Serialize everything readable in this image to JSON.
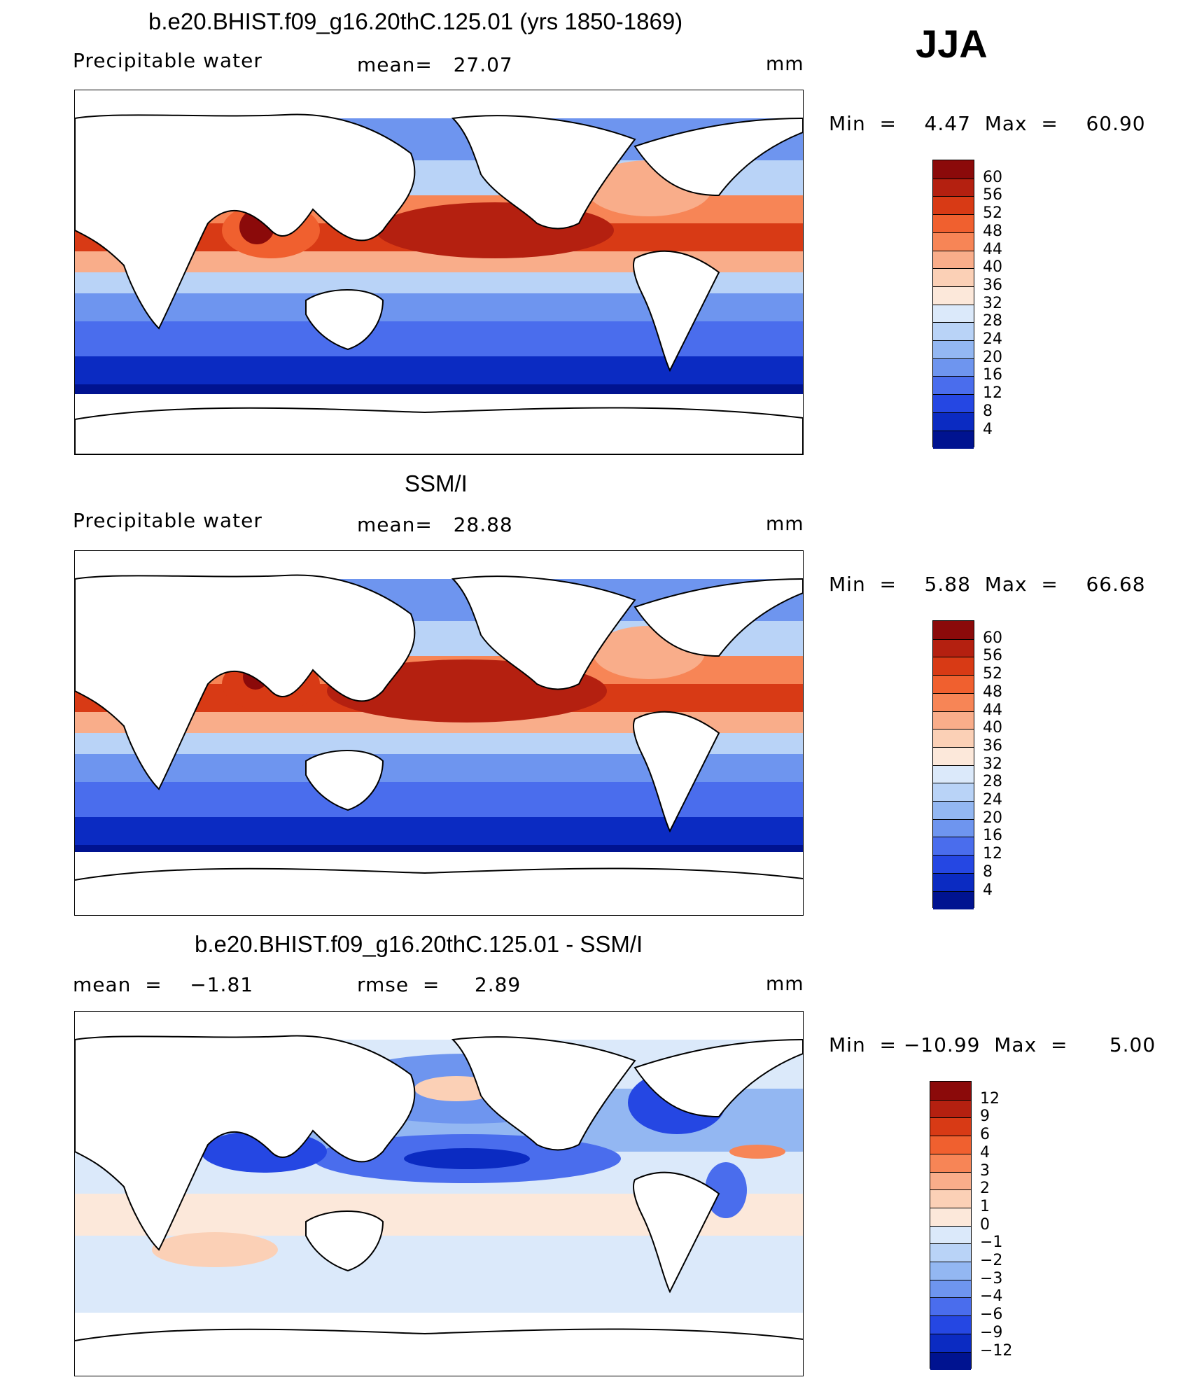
{
  "season": "JJA",
  "panels": [
    {
      "title": "b.e20.BHIST.f09_g16.20thC.125.01 (yrs 1850-1869)",
      "variable": "Precipitable water",
      "stat1": "mean=   27.07",
      "stat2": "",
      "units": "mm",
      "minmax": "Min  =    4.47  Max  =    60.90",
      "colorbar": {
        "levels": [
          "60",
          "56",
          "52",
          "48",
          "44",
          "40",
          "36",
          "32",
          "28",
          "24",
          "20",
          "16",
          "12",
          "8",
          "4"
        ],
        "colors": [
          "#8b0a0a",
          "#b42010",
          "#d83a15",
          "#f0602f",
          "#f78556",
          "#f9ad8a",
          "#fbd0b6",
          "#fce8da",
          "#dbe9fa",
          "#b9d3f7",
          "#93b7f2",
          "#6e95ef",
          "#4a6ded",
          "#2547e3",
          "#0b2bc2",
          "#001390"
        ]
      }
    },
    {
      "title": "SSM/I",
      "variable": "Precipitable water",
      "stat1": "mean=   28.88",
      "stat2": "",
      "units": "mm",
      "minmax": "Min  =    5.88  Max  =    66.68",
      "colorbar": {
        "levels": [
          "60",
          "56",
          "52",
          "48",
          "44",
          "40",
          "36",
          "32",
          "28",
          "24",
          "20",
          "16",
          "12",
          "8",
          "4"
        ],
        "colors": [
          "#8b0a0a",
          "#b42010",
          "#d83a15",
          "#f0602f",
          "#f78556",
          "#f9ad8a",
          "#fbd0b6",
          "#fce8da",
          "#dbe9fa",
          "#b9d3f7",
          "#93b7f2",
          "#6e95ef",
          "#4a6ded",
          "#2547e3",
          "#0b2bc2",
          "#001390"
        ]
      }
    },
    {
      "title": "b.e20.BHIST.f09_g16.20thC.125.01 - SSM/I",
      "variable": "mean  =    −1.81",
      "stat1": "rmse  =     2.89",
      "stat2": "",
      "units": "mm",
      "minmax": "Min  = −10.99  Max  =      5.00",
      "colorbar": {
        "levels": [
          "12",
          "9",
          "6",
          "4",
          "3",
          "2",
          "1",
          "0",
          "−1",
          "−2",
          "−3",
          "−4",
          "−6",
          "−9",
          "−12"
        ],
        "colors": [
          "#8b0a0a",
          "#b42010",
          "#d83a15",
          "#f0602f",
          "#f78556",
          "#f9ad8a",
          "#fbd0b6",
          "#fce8da",
          "#dbe9fa",
          "#b9d3f7",
          "#93b7f2",
          "#6e95ef",
          "#4a6ded",
          "#2547e3",
          "#0b2bc2",
          "#001390"
        ]
      }
    }
  ],
  "chart_data": [
    {
      "type": "heatmap",
      "title": "b.e20.BHIST.f09_g16.20thC.125.01 (yrs 1850-1869)",
      "subtitle": "Precipitable water",
      "mean": 27.07,
      "units": "mm",
      "min": 4.47,
      "max": 60.9,
      "contour_levels": [
        4,
        8,
        12,
        16,
        20,
        24,
        28,
        32,
        36,
        40,
        44,
        48,
        52,
        56,
        60
      ]
    },
    {
      "type": "heatmap",
      "title": "SSM/I",
      "subtitle": "Precipitable water",
      "mean": 28.88,
      "units": "mm",
      "min": 5.88,
      "max": 66.68,
      "contour_levels": [
        4,
        8,
        12,
        16,
        20,
        24,
        28,
        32,
        36,
        40,
        44,
        48,
        52,
        56,
        60
      ]
    },
    {
      "type": "heatmap",
      "title": "b.e20.BHIST.f09_g16.20thC.125.01 - SSM/I",
      "mean": -1.81,
      "rmse": 2.89,
      "units": "mm",
      "min": -10.99,
      "max": 5.0,
      "contour_levels": [
        -12,
        -9,
        -6,
        -4,
        -3,
        -2,
        -1,
        0,
        1,
        2,
        3,
        4,
        6,
        9,
        12
      ]
    }
  ]
}
